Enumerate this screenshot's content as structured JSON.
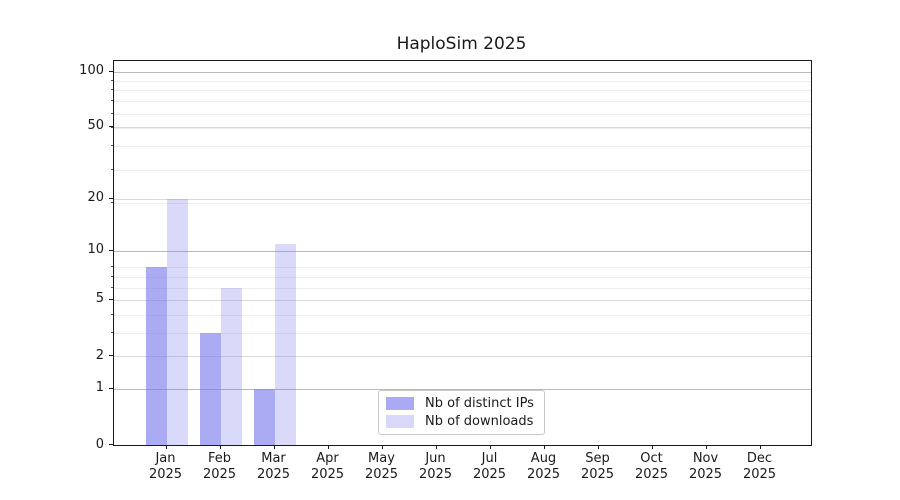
{
  "chart_data": {
    "type": "bar",
    "title": "HaploSim 2025",
    "categories": [
      "Jan",
      "Feb",
      "Mar",
      "Apr",
      "May",
      "Jun",
      "Jul",
      "Aug",
      "Sep",
      "Oct",
      "Nov",
      "Dec"
    ],
    "x_sublabel": "2025",
    "series": [
      {
        "name": "Nb of distinct IPs",
        "values": [
          8,
          3,
          1,
          0,
          0,
          0,
          0,
          0,
          0,
          0,
          0,
          0
        ],
        "fill": "rgba(119,119,238,0.62)",
        "legend_color": "#a9a9f4"
      },
      {
        "name": "Nb of downloads",
        "values": [
          20,
          6,
          11,
          0,
          0,
          0,
          0,
          0,
          0,
          0,
          0,
          0
        ],
        "fill": "rgba(119,119,238,0.28)",
        "legend_color": "#d8d8f8"
      }
    ],
    "y_axis": {
      "scale": "log1p",
      "ticks": [
        0,
        1,
        2,
        5,
        10,
        20,
        50,
        100
      ],
      "minor_ticks": [
        3,
        4,
        6,
        7,
        8,
        19,
        29,
        39,
        49,
        59,
        69,
        79,
        89
      ],
      "top_value": 114,
      "strong_gridline_values": [
        1,
        10,
        100
      ]
    },
    "legend_position": "lower center",
    "grid": true,
    "colors": {
      "bar_base": "#7777ee",
      "grid_major_strong": "#b9b9b9",
      "grid_major": "#d9d9d9",
      "grid_minor": "#ededed",
      "spine": "#1a1a1a",
      "text": "#1a1a1a",
      "background": "#ffffff"
    }
  }
}
